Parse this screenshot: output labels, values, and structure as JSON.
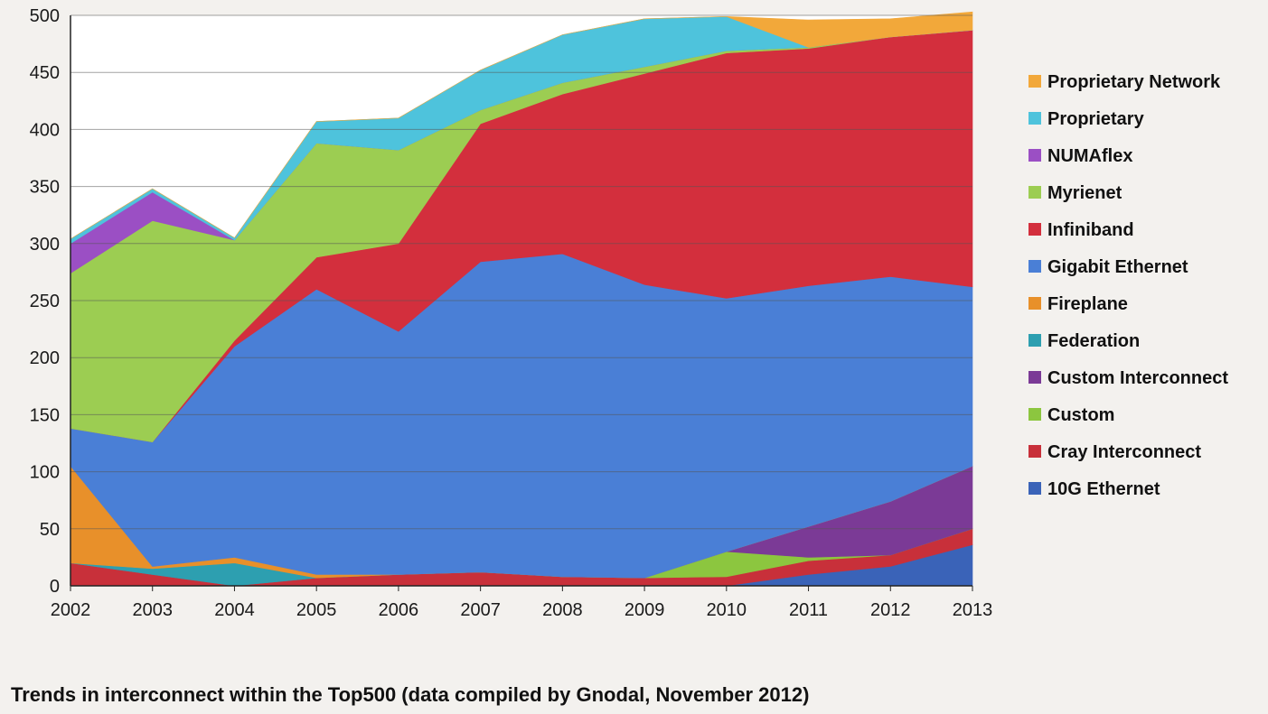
{
  "caption": "Trends in interconnect within the Top500 (data compiled by Gnodal, November 2012)",
  "chart_data": {
    "type": "area",
    "stacked": true,
    "x": [
      "2002",
      "2003",
      "2004",
      "2005",
      "2006",
      "2007",
      "2008",
      "2009",
      "2010",
      "2011",
      "2012",
      "2013"
    ],
    "y_ticks": [
      "0",
      "50",
      "100",
      "150",
      "200",
      "250",
      "300",
      "350",
      "400",
      "450",
      "500"
    ],
    "ylim": [
      0,
      500
    ],
    "grid": true,
    "legend_position": "right",
    "series": [
      {
        "name": "10G Ethernet",
        "color": "#3a63b8",
        "values": [
          0,
          0,
          0,
          0,
          0,
          0,
          0,
          0,
          0,
          10,
          17,
          36
        ]
      },
      {
        "name": "Cray Interconnect",
        "color": "#c8303a",
        "values": [
          20,
          10,
          0,
          7,
          10,
          12,
          8,
          7,
          8,
          12,
          10,
          14
        ]
      },
      {
        "name": "Custom",
        "color": "#8cc63f",
        "values": [
          0,
          0,
          0,
          0,
          0,
          0,
          0,
          0,
          22,
          3,
          0,
          0
        ]
      },
      {
        "name": "Custom Interconnect",
        "color": "#7b3a96",
        "values": [
          0,
          0,
          0,
          0,
          0,
          0,
          0,
          0,
          0,
          27,
          47,
          55
        ]
      },
      {
        "name": "Federation",
        "color": "#2d9fb0",
        "values": [
          0,
          5,
          20,
          0,
          0,
          0,
          0,
          0,
          0,
          0,
          0,
          0
        ]
      },
      {
        "name": "Fireplane",
        "color": "#e8902a",
        "values": [
          85,
          2,
          5,
          3,
          0,
          0,
          0,
          0,
          0,
          0,
          0,
          0
        ]
      },
      {
        "name": "Gigabit Ethernet",
        "color": "#4a7fd6",
        "values": [
          33,
          109,
          185,
          250,
          213,
          272,
          283,
          257,
          222,
          211,
          197,
          157
        ]
      },
      {
        "name": "Infiniband",
        "color": "#d32f3d",
        "values": [
          0,
          0,
          5,
          28,
          77,
          121,
          140,
          185,
          215,
          208,
          210,
          225
        ]
      },
      {
        "name": "Myrienet",
        "color": "#9ccd52",
        "values": [
          136,
          194,
          88,
          100,
          82,
          12,
          10,
          6,
          2,
          1,
          0,
          0
        ]
      },
      {
        "name": "NUMAflex",
        "color": "#9b4fc4",
        "values": [
          26,
          25,
          0,
          0,
          0,
          0,
          0,
          0,
          0,
          0,
          0,
          0
        ]
      },
      {
        "name": "Proprietary",
        "color": "#4ec3dc",
        "values": [
          4,
          3,
          2,
          19,
          28,
          35,
          42,
          42,
          30,
          0,
          0,
          0
        ]
      },
      {
        "name": "Proprietary Network",
        "color": "#f2a83a",
        "values": [
          0,
          0,
          0,
          0,
          0,
          0,
          0,
          0,
          0,
          24,
          16,
          16
        ]
      }
    ]
  }
}
